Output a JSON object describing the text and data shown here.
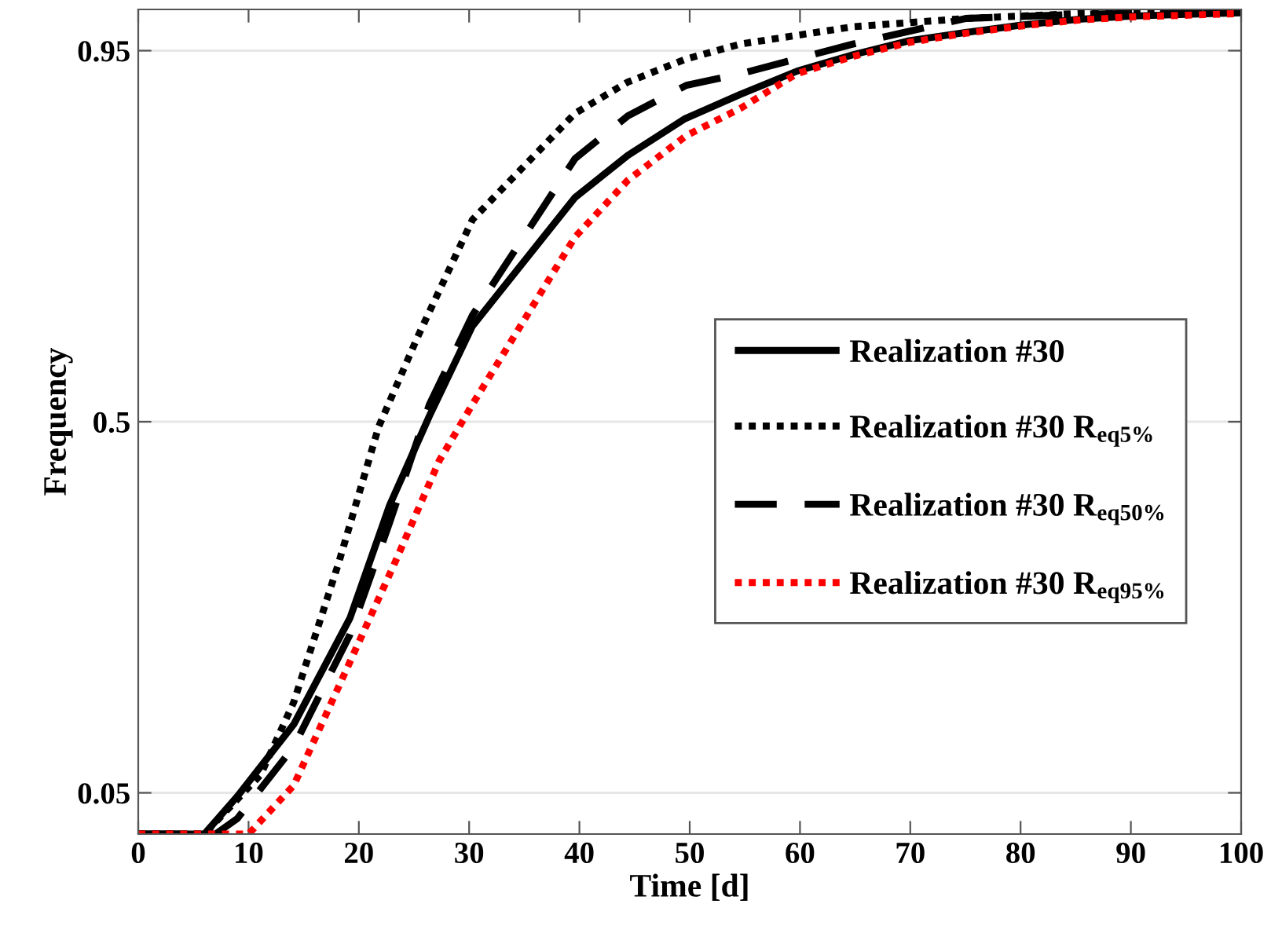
{
  "chart_data": {
    "type": "line",
    "xlabel": "Time [d]",
    "ylabel": "Frequency",
    "xlim": [
      0,
      100
    ],
    "xticks": [
      0,
      10,
      20,
      30,
      40,
      50,
      60,
      70,
      80,
      90,
      100
    ],
    "ylim": [
      0,
      1
    ],
    "yticks": [
      0.05,
      0.5,
      0.95
    ],
    "grid": "y",
    "legend": "right",
    "marker": "none",
    "series": [
      {
        "name": "Realization #30",
        "color": "#000000",
        "line_style": "solid",
        "x": [
          0,
          6,
          9.0,
          14.1,
          19.2,
          22.8,
          26.4,
          30.3,
          39.6,
          44.4,
          49.5,
          54.6,
          59.7,
          64.8,
          69.9,
          75.0,
          80.1,
          85.2,
          90.2,
          100
        ],
        "values": [
          0,
          0,
          0.046,
          0.133,
          0.262,
          0.399,
          0.507,
          0.616,
          0.772,
          0.823,
          0.867,
          0.897,
          0.925,
          0.945,
          0.962,
          0.972,
          0.981,
          0.988,
          0.992,
          0.996
        ]
      },
      {
        "name": "Realization #30 R$_{eq5%}$",
        "color": "#000000",
        "line_style": "dotted",
        "x": [
          0,
          6,
          11.1,
          14.1,
          18.2,
          21.8,
          25.3,
          30.3,
          39.6,
          44.4,
          49.7,
          54.6,
          64.8,
          75.0,
          85.2,
          100
        ],
        "values": [
          0,
          0,
          0.072,
          0.16,
          0.33,
          0.494,
          0.602,
          0.745,
          0.874,
          0.912,
          0.94,
          0.958,
          0.979,
          0.989,
          0.995,
          0.997
        ]
      },
      {
        "name": "Realization #30 R$_{eq50%}$",
        "color": "#000000",
        "line_style": "dashed",
        "x": [
          0,
          7,
          9.0,
          14.1,
          19.2,
          22.8,
          26.4,
          30.3,
          39.6,
          44.4,
          49.7,
          54.6,
          64.8,
          75.0,
          85.2,
          100
        ],
        "values": [
          0,
          0,
          0.019,
          0.106,
          0.242,
          0.378,
          0.521,
          0.629,
          0.819,
          0.871,
          0.908,
          0.922,
          0.958,
          0.989,
          0.994,
          0.997
        ]
      },
      {
        "name": "Realization #30 R$_{eq95%}$",
        "color": "#ff0000",
        "line_style": "dotted",
        "x": [
          0,
          10,
          14.1,
          19.2,
          23.3,
          27.3,
          30.3,
          39.6,
          44.4,
          49.7,
          54.6,
          59.7,
          64.8,
          69.9,
          75.0,
          80.1,
          85.2,
          90.2,
          100
        ],
        "values": [
          0,
          0,
          0.059,
          0.209,
          0.33,
          0.453,
          0.521,
          0.724,
          0.793,
          0.847,
          0.88,
          0.922,
          0.943,
          0.96,
          0.971,
          0.98,
          0.987,
          0.991,
          0.995
        ]
      }
    ]
  }
}
